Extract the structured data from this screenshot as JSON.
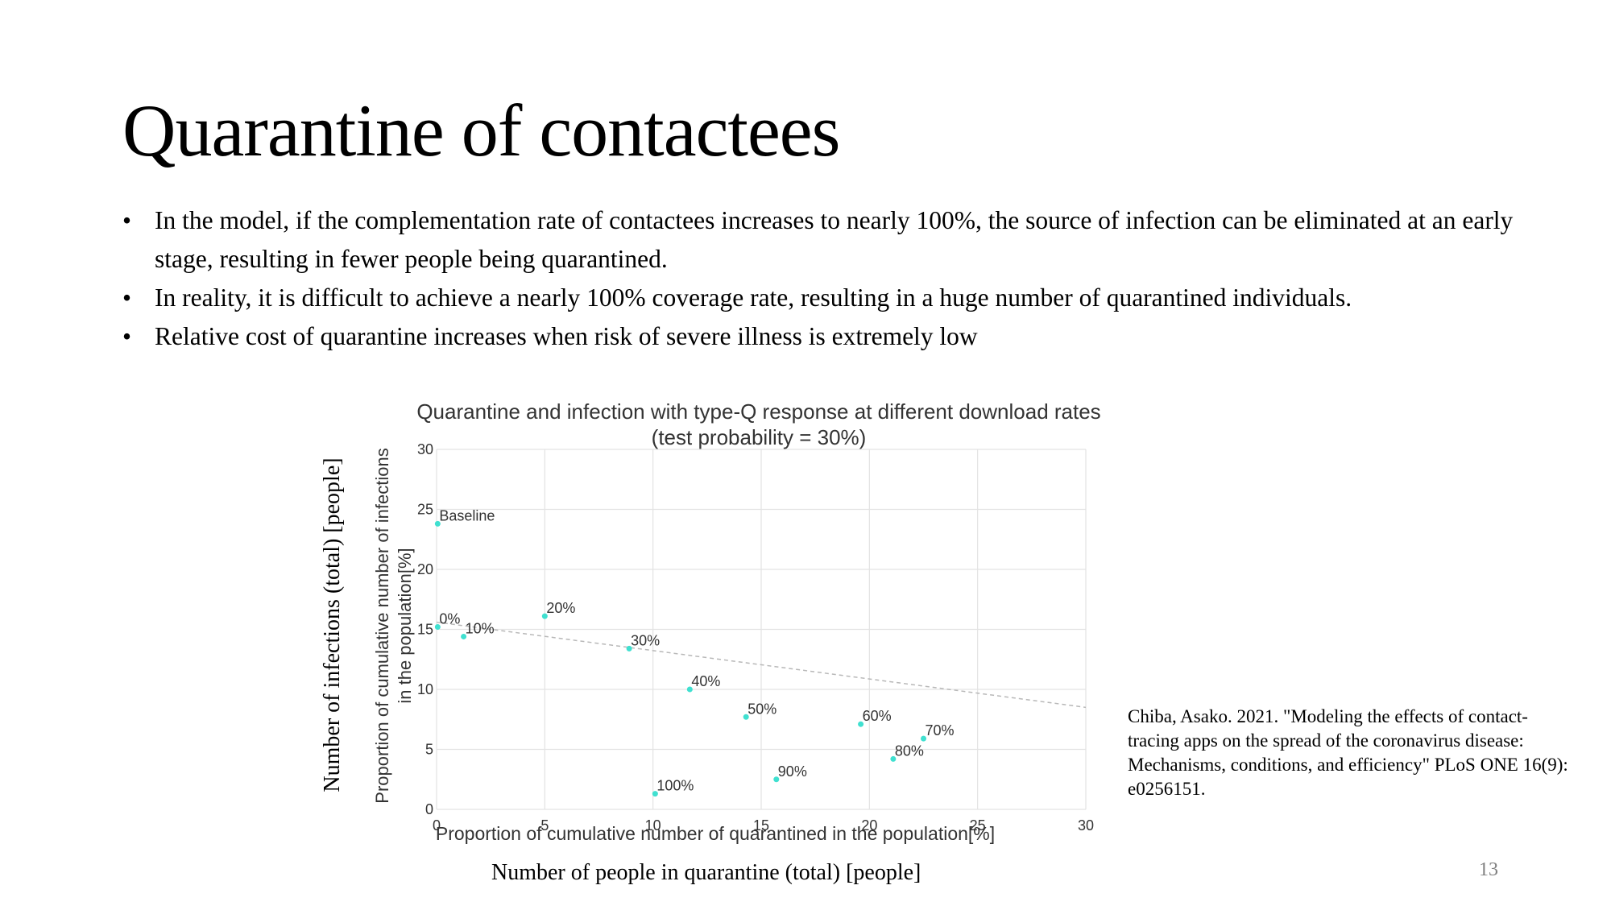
{
  "slide": {
    "title": "Quarantine of contactees",
    "bullets": [
      "In the model, if the complementation rate of contactees increases to nearly 100%, the source of infection can be eliminated at an early stage, resulting in fewer people being quarantined.",
      "In reality, it is difficult to achieve a nearly 100% coverage rate, resulting in a huge number of quarantined individuals.",
      "Relative cost of quarantine increases when risk of severe illness is extremely low"
    ],
    "bullet_symbol": "•",
    "outer_ylabel": "Number of infections (total) [people]",
    "outer_xlabel": "Number of people in quarantine (total) [people]",
    "citation": "Chiba, Asako. 2021. \"Modeling the effects of contact-tracing apps on the spread of the coronavirus disease: Mechanisms, conditions, and efficiency\" PLoS ONE 16(9): e0256151.",
    "page_number": "13"
  },
  "chart_data": {
    "type": "scatter",
    "title": "Quarantine and infection with type-Q response at different download rates",
    "subtitle": "(test probability = 30%)",
    "xlabel": "Proportion of cumulative number of quarantined in the population[%]",
    "ylabel_lines": [
      "Proportion of cumulative number of infections",
      "in the population[%]"
    ],
    "xlim": [
      0,
      30
    ],
    "ylim": [
      0,
      30
    ],
    "xticks": [
      0,
      5,
      10,
      15,
      20,
      25,
      30
    ],
    "yticks": [
      0,
      5,
      10,
      15,
      20,
      25,
      30
    ],
    "grid": true,
    "point_color": "#40e0d0",
    "trend_color": "#b8b8b8",
    "points": [
      {
        "label": "Baseline",
        "x": 0.05,
        "y": 23.8
      },
      {
        "label": "0%",
        "x": 0.05,
        "y": 15.2
      },
      {
        "label": "10%",
        "x": 1.25,
        "y": 14.4
      },
      {
        "label": "20%",
        "x": 5.0,
        "y": 16.1
      },
      {
        "label": "30%",
        "x": 8.9,
        "y": 13.4
      },
      {
        "label": "40%",
        "x": 11.7,
        "y": 10.0
      },
      {
        "label": "50%",
        "x": 14.3,
        "y": 7.7
      },
      {
        "label": "60%",
        "x": 19.6,
        "y": 7.1
      },
      {
        "label": "70%",
        "x": 22.5,
        "y": 5.9
      },
      {
        "label": "80%",
        "x": 21.1,
        "y": 4.2
      },
      {
        "label": "90%",
        "x": 15.7,
        "y": 2.5
      },
      {
        "label": "100%",
        "x": 10.1,
        "y": 1.3
      }
    ],
    "trendline": {
      "x": [
        0,
        30
      ],
      "y": [
        15.6,
        8.5
      ]
    }
  }
}
